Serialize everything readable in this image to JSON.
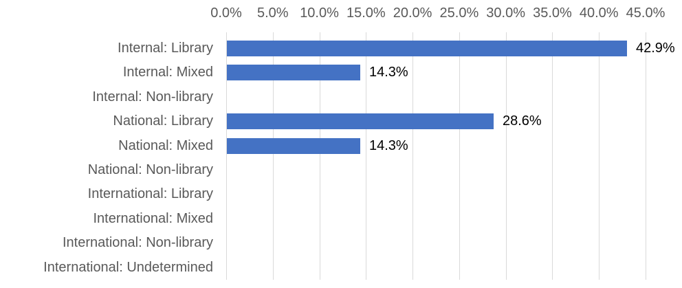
{
  "chart_data": {
    "type": "bar",
    "orientation": "horizontal",
    "title": "",
    "categories": [
      "Internal: Library",
      "Internal: Mixed",
      "Internal: Non-library",
      "National: Library",
      "National: Mixed",
      "National: Non-library",
      "International: Library",
      "International: Mixed",
      "International: Non-library",
      "International: Undetermined"
    ],
    "values": [
      42.9,
      14.3,
      0,
      28.6,
      14.3,
      0,
      0,
      0,
      0,
      0
    ],
    "data_labels": [
      "42.9%",
      "14.3%",
      "",
      "28.6%",
      "14.3%",
      "",
      "",
      "",
      "",
      ""
    ],
    "x_ticks": [
      "0.0%",
      "5.0%",
      "10.0%",
      "15.0%",
      "20.0%",
      "25.0%",
      "30.0%",
      "35.0%",
      "40.0%",
      "45.0%"
    ],
    "xlim": [
      0,
      45
    ],
    "x_tick_step": 5,
    "grid": true,
    "legend": "none",
    "axis_position": "top",
    "colors": {
      "bar": "#4472C4",
      "gridline": "#D9D9D9",
      "axis_text": "#595959",
      "category_text": "#595959",
      "value_text": "#000000",
      "background": "#FFFFFF"
    }
  }
}
